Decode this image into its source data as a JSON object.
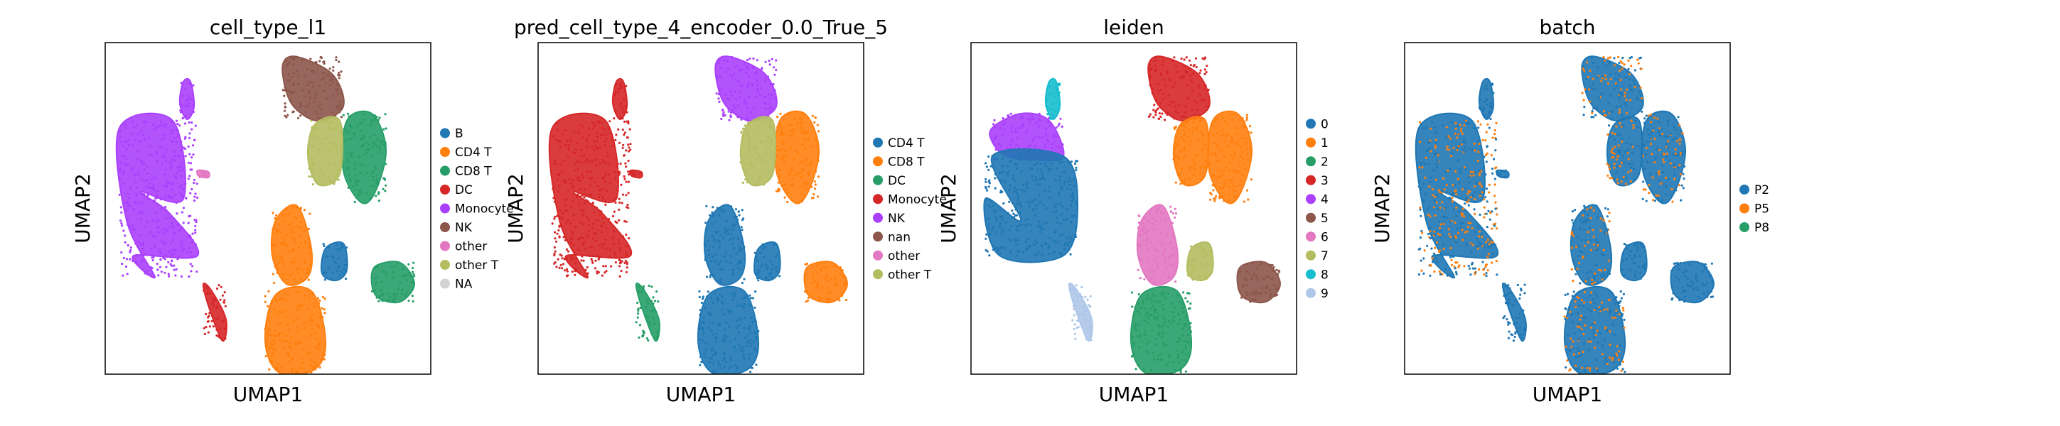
{
  "chart_data": [
    {
      "type": "scatter",
      "title": "cell_type_l1",
      "xlabel": "UMAP1",
      "ylabel": "UMAP2",
      "legend": "right",
      "grid": false,
      "series": [
        {
          "name": "B",
          "color": "#1f77b4"
        },
        {
          "name": "CD4 T",
          "color": "#ff7f0e"
        },
        {
          "name": "CD8 T",
          "color": "#279e68"
        },
        {
          "name": "DC",
          "color": "#d62728"
        },
        {
          "name": "Monocyte",
          "color": "#aa40fc"
        },
        {
          "name": "NK",
          "color": "#8c564b"
        },
        {
          "name": "other",
          "color": "#e377c2"
        },
        {
          "name": "other T",
          "color": "#b5bd61"
        },
        {
          "name": "NA",
          "color": "#d3d3d3"
        }
      ],
      "clusters": [
        {
          "shape": "mono_big",
          "series": "Monocyte"
        },
        {
          "shape": "mono_tail",
          "series": "DC"
        },
        {
          "shape": "left_small",
          "series": "Monocyte"
        },
        {
          "shape": "pink_dot",
          "series": "other"
        },
        {
          "shape": "top_brown",
          "series": "NK"
        },
        {
          "shape": "green_right",
          "series": "CD8 T"
        },
        {
          "shape": "olive_mid",
          "series": "other T"
        },
        {
          "shape": "mid_orange",
          "series": "CD4 T"
        },
        {
          "shape": "bottom_big",
          "series": "CD4 T"
        },
        {
          "shape": "mid_blue",
          "series": "B"
        },
        {
          "shape": "right_small",
          "series": "CD8 T"
        }
      ]
    },
    {
      "type": "scatter",
      "title": "pred_cell_type_4_encoder_0.0_True_5",
      "xlabel": "UMAP1",
      "ylabel": "UMAP2",
      "legend": "right",
      "grid": false,
      "series": [
        {
          "name": "CD4 T",
          "color": "#1f77b4"
        },
        {
          "name": "CD8 T",
          "color": "#ff7f0e"
        },
        {
          "name": "DC",
          "color": "#279e68"
        },
        {
          "name": "Monocyte",
          "color": "#d62728"
        },
        {
          "name": "NK",
          "color": "#aa40fc"
        },
        {
          "name": "nan",
          "color": "#8c564b"
        },
        {
          "name": "other",
          "color": "#e377c2"
        },
        {
          "name": "other T",
          "color": "#b5bd61"
        }
      ],
      "clusters": [
        {
          "shape": "mono_big",
          "series": "Monocyte"
        },
        {
          "shape": "mono_tail",
          "series": "DC"
        },
        {
          "shape": "left_small",
          "series": "Monocyte"
        },
        {
          "shape": "pink_dot",
          "series": "Monocyte"
        },
        {
          "shape": "top_brown",
          "series": "NK"
        },
        {
          "shape": "green_right",
          "series": "CD8 T"
        },
        {
          "shape": "olive_mid",
          "series": "other T"
        },
        {
          "shape": "mid_orange",
          "series": "CD4 T"
        },
        {
          "shape": "bottom_big",
          "series": "CD4 T"
        },
        {
          "shape": "mid_blue",
          "series": "CD4 T"
        },
        {
          "shape": "right_small",
          "series": "CD8 T"
        }
      ]
    },
    {
      "type": "scatter",
      "title": "leiden",
      "xlabel": "UMAP1",
      "ylabel": "UMAP2",
      "legend": "right",
      "grid": false,
      "series": [
        {
          "name": "0",
          "color": "#1f77b4"
        },
        {
          "name": "1",
          "color": "#ff7f0e"
        },
        {
          "name": "2",
          "color": "#279e68"
        },
        {
          "name": "3",
          "color": "#d62728"
        },
        {
          "name": "4",
          "color": "#aa40fc"
        },
        {
          "name": "5",
          "color": "#8c564b"
        },
        {
          "name": "6",
          "color": "#e377c2"
        },
        {
          "name": "7",
          "color": "#b5bd61"
        },
        {
          "name": "8",
          "color": "#17becf"
        },
        {
          "name": "9",
          "color": "#aec7e8"
        }
      ],
      "clusters": [
        {
          "shape": "mono_top",
          "series": "4"
        },
        {
          "shape": "mono_bottom",
          "series": "0"
        },
        {
          "shape": "mono_tail",
          "series": "9"
        },
        {
          "shape": "left_small",
          "series": "8"
        },
        {
          "shape": "top_brown",
          "series": "3"
        },
        {
          "shape": "green_right",
          "series": "1"
        },
        {
          "shape": "olive_mid",
          "series": "1"
        },
        {
          "shape": "mid_orange",
          "series": "6"
        },
        {
          "shape": "bottom_big",
          "series": "2"
        },
        {
          "shape": "mid_blue",
          "series": "7"
        },
        {
          "shape": "right_small",
          "series": "5"
        }
      ]
    },
    {
      "type": "scatter",
      "title": "batch",
      "xlabel": "UMAP1",
      "ylabel": "UMAP2",
      "legend": "right",
      "grid": false,
      "series": [
        {
          "name": "P2",
          "color": "#1f77b4"
        },
        {
          "name": "P5",
          "color": "#ff7f0e"
        },
        {
          "name": "P8",
          "color": "#279e68"
        }
      ],
      "clusters": [
        {
          "shape": "mono_big",
          "series": "P2",
          "mix": [
            "P5"
          ]
        },
        {
          "shape": "mono_tail",
          "series": "P2"
        },
        {
          "shape": "left_small",
          "series": "P2"
        },
        {
          "shape": "pink_dot",
          "series": "P2"
        },
        {
          "shape": "top_brown",
          "series": "P2",
          "mix": [
            "P5"
          ]
        },
        {
          "shape": "green_right",
          "series": "P2",
          "mix": [
            "P5"
          ]
        },
        {
          "shape": "olive_mid",
          "series": "P2",
          "mix": [
            "P5"
          ]
        },
        {
          "shape": "mid_orange",
          "series": "P2",
          "mix": [
            "P5"
          ]
        },
        {
          "shape": "bottom_big",
          "series": "P2",
          "mix": [
            "P5"
          ]
        },
        {
          "shape": "mid_blue",
          "series": "P2"
        },
        {
          "shape": "right_small",
          "series": "P2"
        }
      ]
    }
  ]
}
